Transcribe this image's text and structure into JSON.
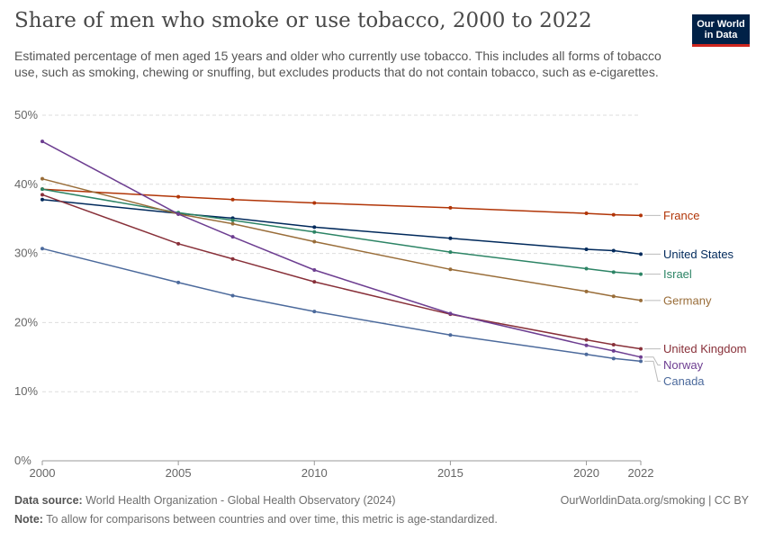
{
  "header": {
    "title": "Share of men who smoke or use tobacco, 2000 to 2022",
    "subtitle": "Estimated percentage of men aged 15 years and older who currently use tobacco. This includes all forms of tobacco use, such as smoking, chewing or snuffing, but excludes products that do not contain tobacco, such as e-cigarettes."
  },
  "logo": {
    "line1": "Our World",
    "line2": "in Data",
    "bg_color": "#002147",
    "accent_color": "#ce261e"
  },
  "footer": {
    "source_label": "Data source:",
    "source_text": "World Health Organization - Global Health Observatory (2024)",
    "url": "OurWorldinData.org/smoking | CC BY",
    "note_label": "Note:",
    "note_text": "To allow for comparisons between countries and over time, this metric is age-standardized."
  },
  "chart_data": {
    "type": "line",
    "title": "Share of men who smoke or use tobacco, 2000 to 2022",
    "xlabel": "",
    "ylabel": "",
    "xlim": [
      2000,
      2022
    ],
    "ylim": [
      0,
      50
    ],
    "x_ticks": [
      2000,
      2005,
      2010,
      2015,
      2020,
      2022
    ],
    "y_ticks": [
      0,
      10,
      20,
      30,
      40,
      50
    ],
    "y_tick_suffix": "%",
    "grid": "horizontal dashed",
    "legend": "right-end labels",
    "x": [
      2000,
      2005,
      2007,
      2010,
      2015,
      2020,
      2021,
      2022
    ],
    "series": [
      {
        "name": "France",
        "color": "#b13507",
        "values": [
          39.3,
          38.2,
          37.8,
          37.3,
          36.6,
          35.8,
          35.6,
          35.5
        ]
      },
      {
        "name": "United States",
        "color": "#00295b",
        "values": [
          37.8,
          35.8,
          35.1,
          33.8,
          32.2,
          30.6,
          30.4,
          29.9
        ]
      },
      {
        "name": "Israel",
        "color": "#2c8465",
        "values": [
          39.3,
          35.9,
          34.8,
          33.1,
          30.2,
          27.8,
          27.3,
          27.0
        ]
      },
      {
        "name": "Germany",
        "color": "#996d39",
        "values": [
          40.8,
          35.7,
          34.3,
          31.7,
          27.7,
          24.5,
          23.8,
          23.2
        ]
      },
      {
        "name": "United Kingdom",
        "color": "#883039",
        "values": [
          38.5,
          31.4,
          29.2,
          25.9,
          21.2,
          17.5,
          16.8,
          16.2
        ]
      },
      {
        "name": "Norway",
        "color": "#6d3e91",
        "values": [
          46.2,
          35.7,
          32.4,
          27.6,
          21.3,
          16.7,
          15.9,
          15.0
        ]
      },
      {
        "name": "Canada",
        "color": "#4c6a9c",
        "values": [
          30.7,
          25.8,
          23.9,
          21.6,
          18.2,
          15.4,
          14.8,
          14.4
        ]
      }
    ]
  }
}
